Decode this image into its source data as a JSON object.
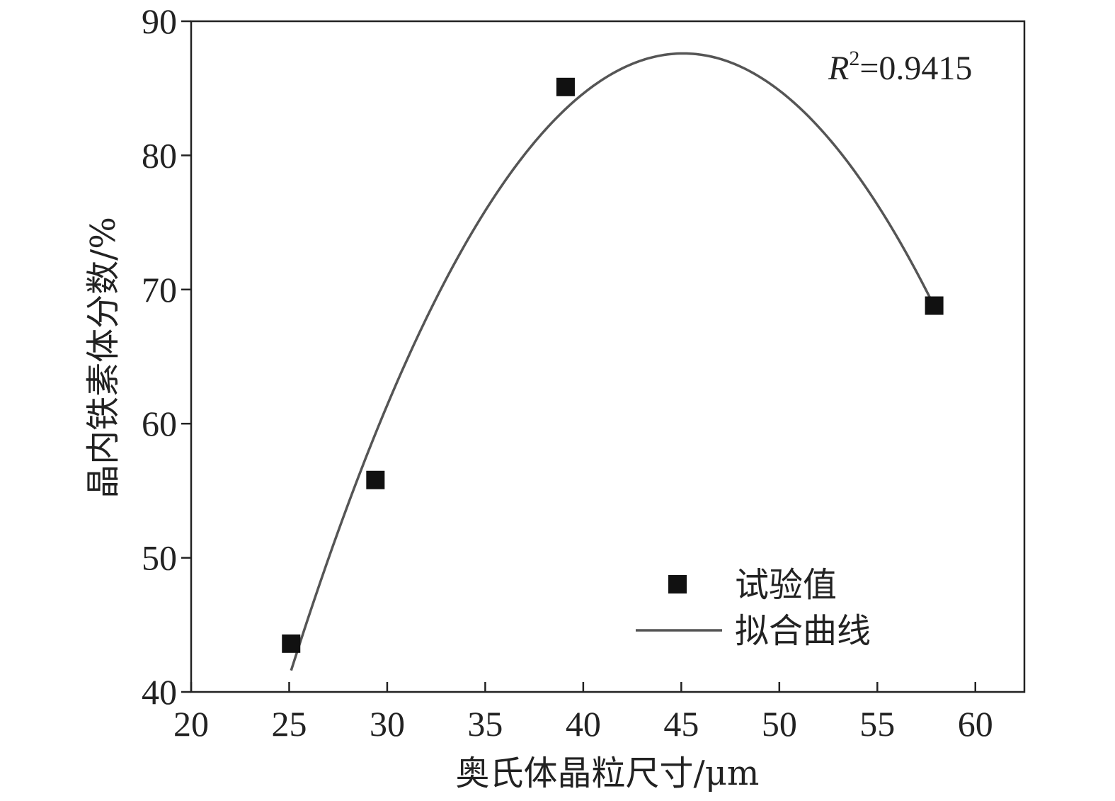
{
  "chart_data": {
    "type": "scatter",
    "xlabel": "奥氏体晶粒尺寸/μm",
    "ylabel": "晶内铁素体分数/%",
    "xlim": [
      20,
      62.5
    ],
    "ylim": [
      40,
      90
    ],
    "xticks": [
      20,
      25,
      30,
      35,
      40,
      45,
      50,
      55,
      60
    ],
    "yticks": [
      40,
      50,
      60,
      70,
      80,
      90
    ],
    "grid": false,
    "legend_position": "bottom-right",
    "series": [
      {
        "name": "试验值",
        "kind": "scatter",
        "marker": "square",
        "color": "#111111",
        "x": [
          25.1,
          29.4,
          39.1,
          57.9
        ],
        "y": [
          43.6,
          55.8,
          85.1,
          68.8
        ]
      },
      {
        "name": "拟合曲线",
        "kind": "line",
        "color": "#555555",
        "fit": {
          "degree": 2,
          "vertex_x": 45.1,
          "vertex_y": 87.6,
          "x_start": 25.1,
          "x_end": 57.9
        }
      }
    ],
    "annotation": {
      "r_symbol": "R",
      "r_exponent": "2",
      "r_value": "=0.9415"
    }
  }
}
